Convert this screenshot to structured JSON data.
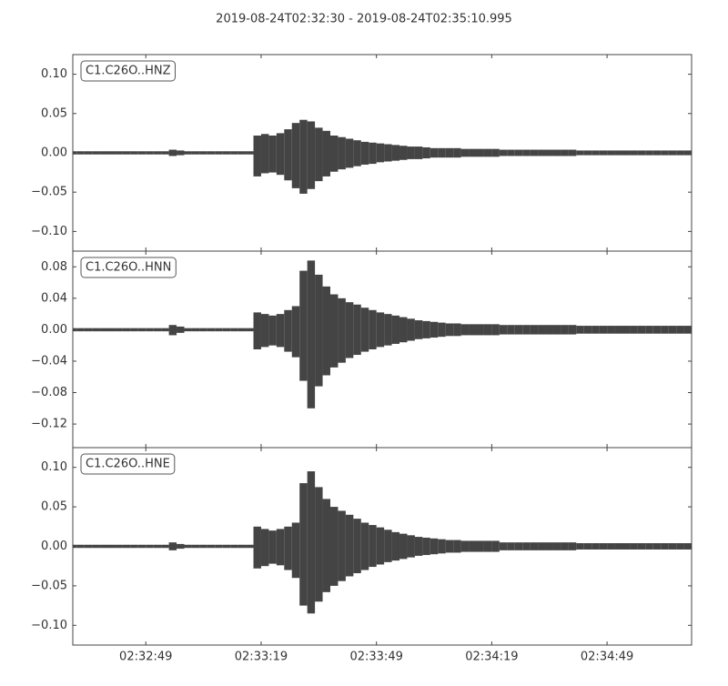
{
  "title": "2019-08-24T02:32:30  -  2019-08-24T02:35:10.995",
  "chart_data": [
    {
      "type": "area",
      "label": "C1.C26O..HNZ",
      "color": "#444444",
      "x": [
        0,
        2,
        4,
        6,
        8,
        10,
        12,
        14,
        16,
        18,
        20,
        22,
        24,
        26,
        28,
        30,
        32,
        34,
        36,
        38,
        40,
        42,
        44,
        46,
        48,
        50,
        52,
        54,
        56,
        58,
        60,
        62,
        64,
        66,
        68,
        70,
        72,
        74,
        76,
        78,
        80,
        82,
        84,
        86,
        88,
        90,
        92,
        94,
        96,
        98,
        100,
        102,
        104,
        106,
        108,
        110,
        112,
        114,
        116,
        118,
        120,
        122,
        124,
        126,
        128,
        130,
        132,
        134,
        136,
        138,
        140,
        142,
        144,
        146,
        148,
        150,
        152,
        154,
        156,
        158,
        160
      ],
      "upper": [
        0.002,
        0.002,
        0.002,
        0.002,
        0.002,
        0.002,
        0.002,
        0.002,
        0.002,
        0.002,
        0.002,
        0.002,
        0.002,
        0.004,
        0.003,
        0.002,
        0.002,
        0.002,
        0.002,
        0.002,
        0.002,
        0.002,
        0.002,
        0.002,
        0.022,
        0.024,
        0.022,
        0.025,
        0.03,
        0.038,
        0.042,
        0.04,
        0.032,
        0.028,
        0.022,
        0.02,
        0.018,
        0.016,
        0.014,
        0.013,
        0.012,
        0.011,
        0.01,
        0.009,
        0.008,
        0.008,
        0.007,
        0.006,
        0.006,
        0.006,
        0.006,
        0.005,
        0.005,
        0.005,
        0.005,
        0.005,
        0.004,
        0.004,
        0.004,
        0.004,
        0.004,
        0.004,
        0.004,
        0.004,
        0.004,
        0.004,
        0.003,
        0.003,
        0.003,
        0.003,
        0.003,
        0.003,
        0.003,
        0.003,
        0.003,
        0.003,
        0.003,
        0.003,
        0.003,
        0.003,
        0.003
      ],
      "lower": [
        -0.002,
        -0.002,
        -0.002,
        -0.002,
        -0.002,
        -0.002,
        -0.002,
        -0.002,
        -0.002,
        -0.002,
        -0.002,
        -0.002,
        -0.002,
        -0.004,
        -0.003,
        -0.002,
        -0.002,
        -0.002,
        -0.002,
        -0.002,
        -0.002,
        -0.002,
        -0.002,
        -0.002,
        -0.03,
        -0.026,
        -0.025,
        -0.028,
        -0.035,
        -0.045,
        -0.052,
        -0.046,
        -0.036,
        -0.03,
        -0.024,
        -0.021,
        -0.019,
        -0.017,
        -0.015,
        -0.014,
        -0.012,
        -0.011,
        -0.01,
        -0.009,
        -0.008,
        -0.008,
        -0.007,
        -0.006,
        -0.006,
        -0.006,
        -0.006,
        -0.005,
        -0.005,
        -0.005,
        -0.005,
        -0.005,
        -0.004,
        -0.004,
        -0.004,
        -0.004,
        -0.004,
        -0.004,
        -0.004,
        -0.004,
        -0.004,
        -0.004,
        -0.003,
        -0.003,
        -0.003,
        -0.003,
        -0.003,
        -0.003,
        -0.003,
        -0.003,
        -0.003,
        -0.003,
        -0.003,
        -0.003,
        -0.003,
        -0.003,
        -0.003
      ],
      "xlim": [
        0,
        160.995
      ],
      "ylim": [
        -0.125,
        0.125
      ],
      "yticks": [
        {
          "value": 0.1,
          "label": "0.10"
        },
        {
          "value": 0.05,
          "label": "0.05"
        },
        {
          "value": 0,
          "label": "0.00"
        },
        {
          "value": -0.05,
          "label": "−0.05"
        },
        {
          "value": -0.1,
          "label": "−0.10"
        }
      ]
    },
    {
      "type": "area",
      "label": "C1.C26O..HNN",
      "color": "#444444",
      "x": [
        0,
        2,
        4,
        6,
        8,
        10,
        12,
        14,
        16,
        18,
        20,
        22,
        24,
        26,
        28,
        30,
        32,
        34,
        36,
        38,
        40,
        42,
        44,
        46,
        48,
        50,
        52,
        54,
        56,
        58,
        60,
        62,
        64,
        66,
        68,
        70,
        72,
        74,
        76,
        78,
        80,
        82,
        84,
        86,
        88,
        90,
        92,
        94,
        96,
        98,
        100,
        102,
        104,
        106,
        108,
        110,
        112,
        114,
        116,
        118,
        120,
        122,
        124,
        126,
        128,
        130,
        132,
        134,
        136,
        138,
        140,
        142,
        144,
        146,
        148,
        150,
        152,
        154,
        156,
        158,
        160
      ],
      "upper": [
        0.002,
        0.002,
        0.002,
        0.002,
        0.002,
        0.002,
        0.002,
        0.002,
        0.002,
        0.002,
        0.002,
        0.002,
        0.002,
        0.006,
        0.004,
        0.002,
        0.002,
        0.002,
        0.002,
        0.002,
        0.002,
        0.002,
        0.002,
        0.002,
        0.022,
        0.02,
        0.018,
        0.02,
        0.025,
        0.03,
        0.075,
        0.088,
        0.07,
        0.055,
        0.045,
        0.04,
        0.035,
        0.032,
        0.028,
        0.025,
        0.022,
        0.02,
        0.018,
        0.016,
        0.014,
        0.012,
        0.011,
        0.01,
        0.009,
        0.008,
        0.008,
        0.007,
        0.007,
        0.007,
        0.007,
        0.007,
        0.006,
        0.006,
        0.006,
        0.006,
        0.006,
        0.006,
        0.006,
        0.006,
        0.006,
        0.006,
        0.005,
        0.005,
        0.005,
        0.005,
        0.005,
        0.005,
        0.005,
        0.005,
        0.005,
        0.005,
        0.005,
        0.005,
        0.005,
        0.005,
        0.005
      ],
      "lower": [
        -0.002,
        -0.002,
        -0.002,
        -0.002,
        -0.002,
        -0.002,
        -0.002,
        -0.002,
        -0.002,
        -0.002,
        -0.002,
        -0.002,
        -0.002,
        -0.007,
        -0.004,
        -0.002,
        -0.002,
        -0.002,
        -0.002,
        -0.002,
        -0.002,
        -0.002,
        -0.002,
        -0.002,
        -0.025,
        -0.022,
        -0.02,
        -0.022,
        -0.028,
        -0.035,
        -0.065,
        -0.1,
        -0.072,
        -0.058,
        -0.048,
        -0.042,
        -0.036,
        -0.032,
        -0.028,
        -0.025,
        -0.022,
        -0.02,
        -0.018,
        -0.016,
        -0.014,
        -0.012,
        -0.011,
        -0.01,
        -0.009,
        -0.008,
        -0.008,
        -0.007,
        -0.007,
        -0.007,
        -0.007,
        -0.007,
        -0.006,
        -0.006,
        -0.006,
        -0.006,
        -0.006,
        -0.006,
        -0.006,
        -0.006,
        -0.006,
        -0.006,
        -0.005,
        -0.005,
        -0.005,
        -0.005,
        -0.005,
        -0.005,
        -0.005,
        -0.005,
        -0.005,
        -0.005,
        -0.005,
        -0.005,
        -0.005,
        -0.005,
        -0.005
      ],
      "xlim": [
        0,
        160.995
      ],
      "ylim": [
        -0.15,
        0.1
      ],
      "yticks": [
        {
          "value": 0.08,
          "label": "0.08"
        },
        {
          "value": 0.04,
          "label": "0.04"
        },
        {
          "value": 0,
          "label": "0.00"
        },
        {
          "value": -0.04,
          "label": "−0.04"
        },
        {
          "value": -0.08,
          "label": "−0.08"
        },
        {
          "value": -0.12,
          "label": "−0.12"
        }
      ]
    },
    {
      "type": "area",
      "label": "C1.C26O..HNE",
      "color": "#444444",
      "x": [
        0,
        2,
        4,
        6,
        8,
        10,
        12,
        14,
        16,
        18,
        20,
        22,
        24,
        26,
        28,
        30,
        32,
        34,
        36,
        38,
        40,
        42,
        44,
        46,
        48,
        50,
        52,
        54,
        56,
        58,
        60,
        62,
        64,
        66,
        68,
        70,
        72,
        74,
        76,
        78,
        80,
        82,
        84,
        86,
        88,
        90,
        92,
        94,
        96,
        98,
        100,
        102,
        104,
        106,
        108,
        110,
        112,
        114,
        116,
        118,
        120,
        122,
        124,
        126,
        128,
        130,
        132,
        134,
        136,
        138,
        140,
        142,
        144,
        146,
        148,
        150,
        152,
        154,
        156,
        158,
        160
      ],
      "upper": [
        0.002,
        0.002,
        0.002,
        0.002,
        0.002,
        0.002,
        0.002,
        0.002,
        0.002,
        0.002,
        0.002,
        0.002,
        0.002,
        0.005,
        0.003,
        0.002,
        0.002,
        0.002,
        0.002,
        0.002,
        0.002,
        0.002,
        0.002,
        0.002,
        0.025,
        0.022,
        0.02,
        0.022,
        0.025,
        0.03,
        0.08,
        0.095,
        0.075,
        0.06,
        0.05,
        0.045,
        0.04,
        0.035,
        0.03,
        0.027,
        0.024,
        0.021,
        0.018,
        0.016,
        0.014,
        0.012,
        0.011,
        0.01,
        0.009,
        0.008,
        0.008,
        0.007,
        0.007,
        0.007,
        0.007,
        0.007,
        0.005,
        0.005,
        0.005,
        0.005,
        0.005,
        0.005,
        0.005,
        0.005,
        0.005,
        0.005,
        0.004,
        0.004,
        0.004,
        0.004,
        0.004,
        0.004,
        0.004,
        0.004,
        0.004,
        0.004,
        0.004,
        0.004,
        0.004,
        0.004,
        0.004
      ],
      "lower": [
        -0.002,
        -0.002,
        -0.002,
        -0.002,
        -0.002,
        -0.002,
        -0.002,
        -0.002,
        -0.002,
        -0.002,
        -0.002,
        -0.002,
        -0.002,
        -0.005,
        -0.003,
        -0.002,
        -0.002,
        -0.002,
        -0.002,
        -0.002,
        -0.002,
        -0.002,
        -0.002,
        -0.002,
        -0.028,
        -0.025,
        -0.022,
        -0.024,
        -0.03,
        -0.04,
        -0.075,
        -0.085,
        -0.07,
        -0.058,
        -0.05,
        -0.044,
        -0.038,
        -0.034,
        -0.03,
        -0.026,
        -0.023,
        -0.02,
        -0.018,
        -0.016,
        -0.014,
        -0.012,
        -0.011,
        -0.01,
        -0.009,
        -0.008,
        -0.008,
        -0.007,
        -0.007,
        -0.007,
        -0.007,
        -0.007,
        -0.005,
        -0.005,
        -0.005,
        -0.005,
        -0.005,
        -0.005,
        -0.005,
        -0.005,
        -0.005,
        -0.005,
        -0.004,
        -0.004,
        -0.004,
        -0.004,
        -0.004,
        -0.004,
        -0.004,
        -0.004,
        -0.004,
        -0.004,
        -0.004,
        -0.004,
        -0.004,
        -0.004,
        -0.004
      ],
      "xlim": [
        0,
        160.995
      ],
      "ylim": [
        -0.125,
        0.125
      ],
      "yticks": [
        {
          "value": 0.1,
          "label": "0.10"
        },
        {
          "value": 0.05,
          "label": "0.05"
        },
        {
          "value": 0,
          "label": "0.00"
        },
        {
          "value": -0.05,
          "label": "−0.05"
        },
        {
          "value": -0.1,
          "label": "−0.10"
        }
      ],
      "xticks": [
        {
          "value": 19,
          "label": "02:32:49"
        },
        {
          "value": 49,
          "label": "02:33:19"
        },
        {
          "value": 79,
          "label": "02:33:49"
        },
        {
          "value": 109,
          "label": "02:34:19"
        },
        {
          "value": 139,
          "label": "02:34:49"
        }
      ]
    }
  ]
}
